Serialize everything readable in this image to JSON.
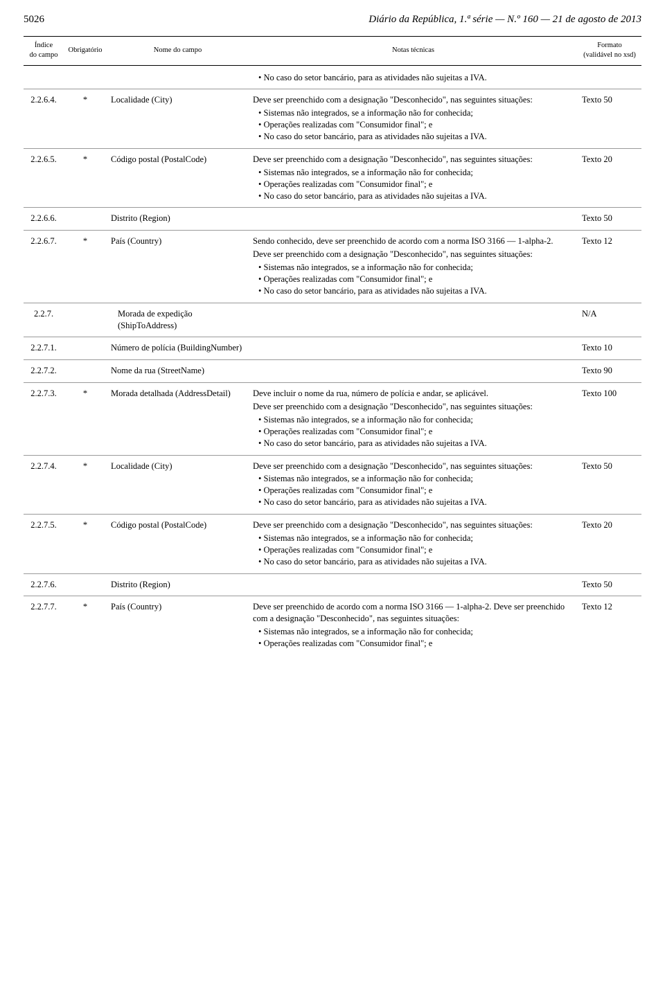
{
  "header": {
    "page_number": "5026",
    "publication": "Diário da República, 1.ª série — N.º 160 — 21 de agosto de 2013"
  },
  "columns": {
    "index": "Índice\ndo campo",
    "mandatory": "Obrigatório",
    "name": "Nome do campo",
    "notes": "Notas técnicas",
    "format": "Formato\n(validável no xsd)"
  },
  "notes_text": {
    "iva_only": "No caso do setor bancário, para as atividades não sujeitas a IVA.",
    "desconhecido_intro": "Deve ser preenchido com a designação \"Desconhecido\", nas seguintes situações:",
    "bullet_sistemas": "Sistemas não integrados, se a informação não for conhecida;",
    "bullet_operacoes": "Operações realizadas com \"Consumidor final\"; e",
    "bullet_iva": "No caso do setor bancário, para as atividades não sujeitas a IVA.",
    "pais_intro": "Sendo conhecido, deve ser preenchido de acordo com a norma ISO 3166 — 1-alpha-2.",
    "morada_detalhada_intro": "Deve incluir o nome da rua, número de polícia e andar, se aplicável.",
    "pais_2277_intro": "Deve ser preenchido de acordo com a norma ISO 3166 — 1-alpha-2. Deve ser preenchido com a designação \"Desconhecido\", nas seguintes situações:"
  },
  "rows": {
    "r0": {
      "idx": "",
      "oblig": "",
      "name": "",
      "fmt": ""
    },
    "r1": {
      "idx": "2.2.6.4.",
      "oblig": "*",
      "name": "Localidade (City)",
      "fmt": "Texto 50"
    },
    "r2": {
      "idx": "2.2.6.5.",
      "oblig": "*",
      "name": "Código postal (PostalCode)",
      "fmt": "Texto 20"
    },
    "r3": {
      "idx": "2.2.6.6.",
      "oblig": "",
      "name": "Distrito (Region)",
      "fmt": "Texto 50"
    },
    "r4": {
      "idx": "2.2.6.7.",
      "oblig": "*",
      "name": "País (Country)",
      "fmt": "Texto 12"
    },
    "r5": {
      "idx": "2.2.7.",
      "oblig": "",
      "name": "Morada de expedição (ShipToAddress)",
      "fmt": "N/A"
    },
    "r6": {
      "idx": "2.2.7.1.",
      "oblig": "",
      "name": "Número de polícia (BuildingNumber)",
      "fmt": "Texto 10"
    },
    "r7": {
      "idx": "2.2.7.2.",
      "oblig": "",
      "name": "Nome da rua (StreetName)",
      "fmt": "Texto 90"
    },
    "r8": {
      "idx": "2.2.7.3.",
      "oblig": "*",
      "name": "Morada detalhada (AddressDetail)",
      "fmt": "Texto 100"
    },
    "r9": {
      "idx": "2.2.7.4.",
      "oblig": "*",
      "name": "Localidade (City)",
      "fmt": "Texto 50"
    },
    "r10": {
      "idx": "2.2.7.5.",
      "oblig": "*",
      "name": "Código postal (PostalCode)",
      "fmt": "Texto 20"
    },
    "r11": {
      "idx": "2.2.7.6.",
      "oblig": "",
      "name": "Distrito (Region)",
      "fmt": "Texto 50"
    },
    "r12": {
      "idx": "2.2.7.7.",
      "oblig": "*",
      "name": "País (Country)",
      "fmt": "Texto 12"
    }
  }
}
